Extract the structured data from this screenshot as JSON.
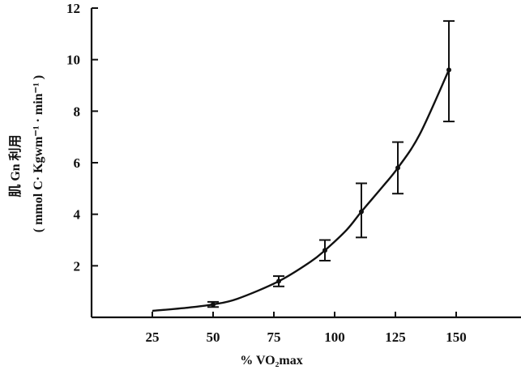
{
  "chart_data": {
    "type": "line",
    "title": "",
    "xlabel": "% VO₂max",
    "ylabel_line1": "肌 Gn 利用",
    "ylabel_line2": "( mmol C· Kgwm⁻¹ · min⁻¹ )",
    "x_ticks": [
      25,
      50,
      75,
      100,
      125,
      150
    ],
    "y_ticks": [
      2,
      4,
      6,
      8,
      10,
      12
    ],
    "xlim": [
      0,
      165
    ],
    "ylim": [
      0,
      12
    ],
    "grid": false,
    "series": [
      {
        "x": [
          50,
          77,
          96,
          111,
          126,
          147
        ],
        "y": [
          0.5,
          1.4,
          2.6,
          4.1,
          5.8,
          9.6
        ],
        "y_err_low": [
          0.4,
          1.2,
          2.2,
          3.1,
          4.8,
          7.6
        ],
        "y_err_high": [
          0.6,
          1.6,
          3.0,
          5.2,
          6.8,
          11.5
        ]
      }
    ],
    "curve": {
      "x": [
        25,
        40,
        50,
        60,
        77,
        90,
        96,
        105,
        111,
        120,
        126,
        135,
        147
      ],
      "y": [
        0.25,
        0.38,
        0.5,
        0.72,
        1.4,
        2.15,
        2.6,
        3.4,
        4.1,
        5.1,
        5.8,
        7.1,
        9.6
      ]
    }
  }
}
